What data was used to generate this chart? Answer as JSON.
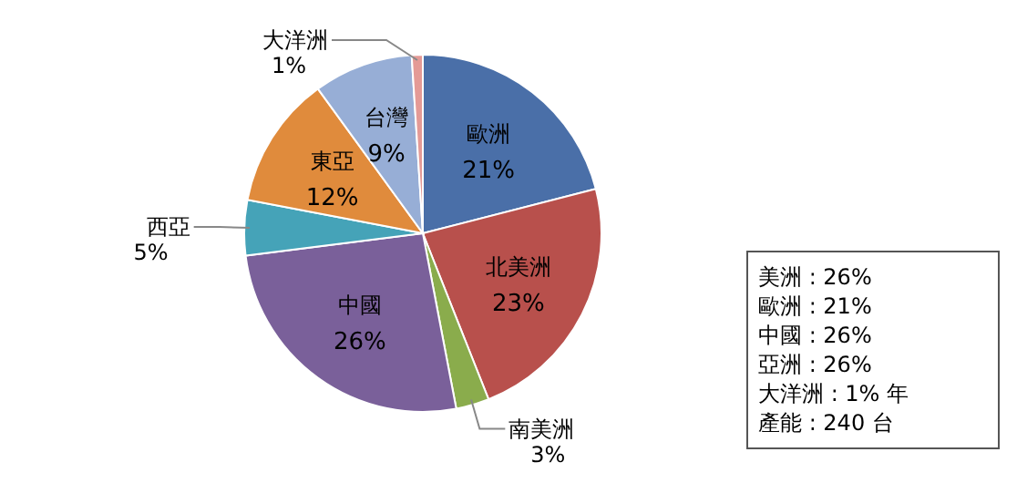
{
  "chart_data": {
    "type": "pie",
    "categories": [
      "歐洲",
      "北美洲",
      "南美洲",
      "中國",
      "西亞",
      "東亞",
      "台灣",
      "大洋洲"
    ],
    "values": [
      21,
      23,
      3,
      26,
      5,
      12,
      9,
      1
    ],
    "value_labels": [
      "21%",
      "23%",
      "3%",
      "26%",
      "5%",
      "12%",
      "9%",
      "1%"
    ],
    "colors": [
      "#4a6fa8",
      "#b8504c",
      "#8aac4c",
      "#7a609a",
      "#45a3b8",
      "#e08b3c",
      "#97aed6",
      "#e49a96"
    ],
    "annotations": [
      "美洲 : 26%",
      "歐洲 : 21%",
      "中國 : 26%",
      "亞洲 : 26%",
      "大洋洲 : 1% 年",
      "產能 : 240 台"
    ]
  }
}
